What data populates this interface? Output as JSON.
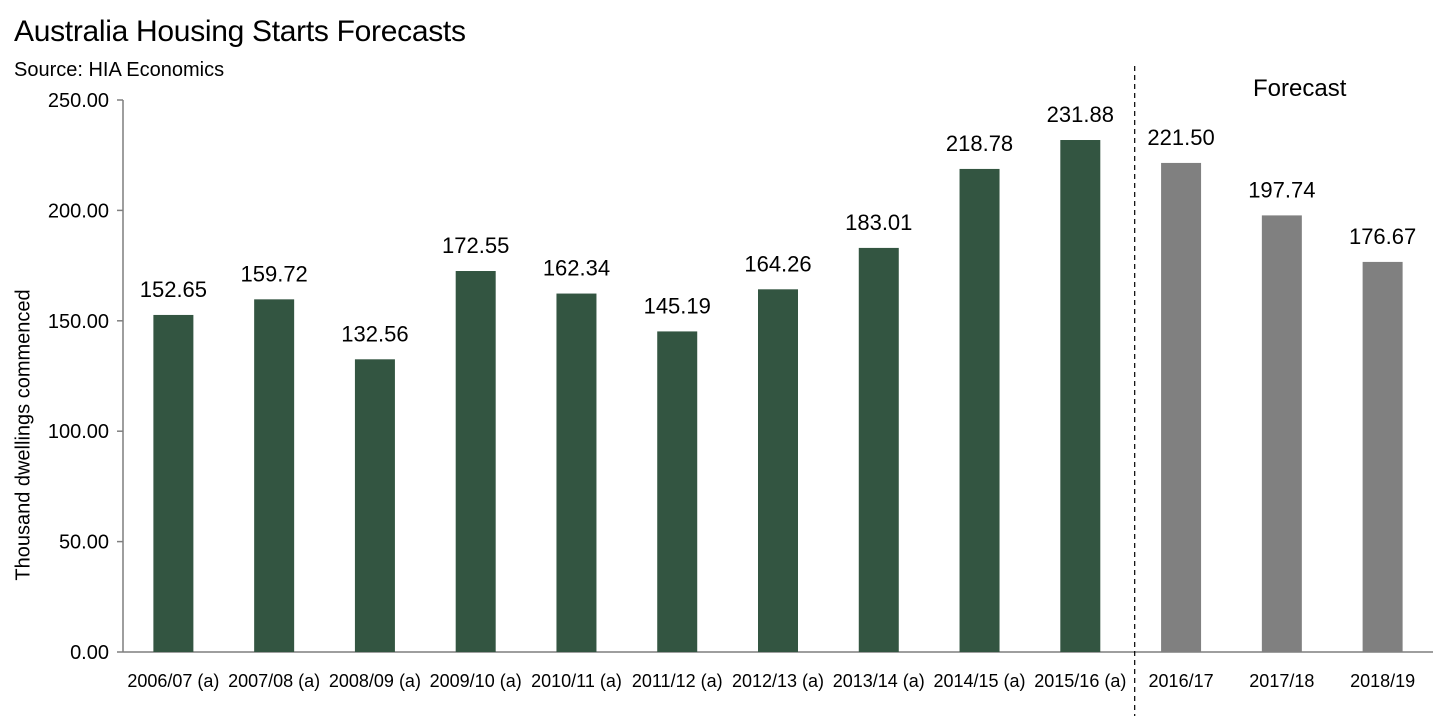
{
  "chart_data": {
    "type": "bar",
    "title": "Australia Housing Starts Forecasts",
    "subtitle": "Source: HIA Economics",
    "ylabel": "Thousand dwellings commenced",
    "xlabel": "",
    "ylim": [
      0,
      250
    ],
    "yticks": [
      "0.00",
      "50.00",
      "100.00",
      "150.00",
      "200.00",
      "250.00"
    ],
    "categories": [
      "2006/07 (a)",
      "2007/08 (a)",
      "2008/09 (a)",
      "2009/10 (a)",
      "2010/11 (a)",
      "2011/12 (a)",
      "2012/13 (a)",
      "2013/14 (a)",
      "2014/15 (a)",
      "2015/16 (a)",
      "2016/17",
      "2017/18",
      "2018/19"
    ],
    "values": [
      152.65,
      159.72,
      132.56,
      172.55,
      162.34,
      145.19,
      164.26,
      183.01,
      218.78,
      231.88,
      221.5,
      197.74,
      176.67
    ],
    "value_labels": [
      "152.65",
      "159.72",
      "132.56",
      "172.55",
      "162.34",
      "145.19",
      "164.26",
      "183.01",
      "218.78",
      "231.88",
      "221.50",
      "197.74",
      "176.67"
    ],
    "forecast_annotation": "Forecast",
    "forecast_start_index": 10,
    "colors": {
      "actual": "#335541",
      "forecast": "#808080"
    },
    "grid": false,
    "legend": "none"
  }
}
